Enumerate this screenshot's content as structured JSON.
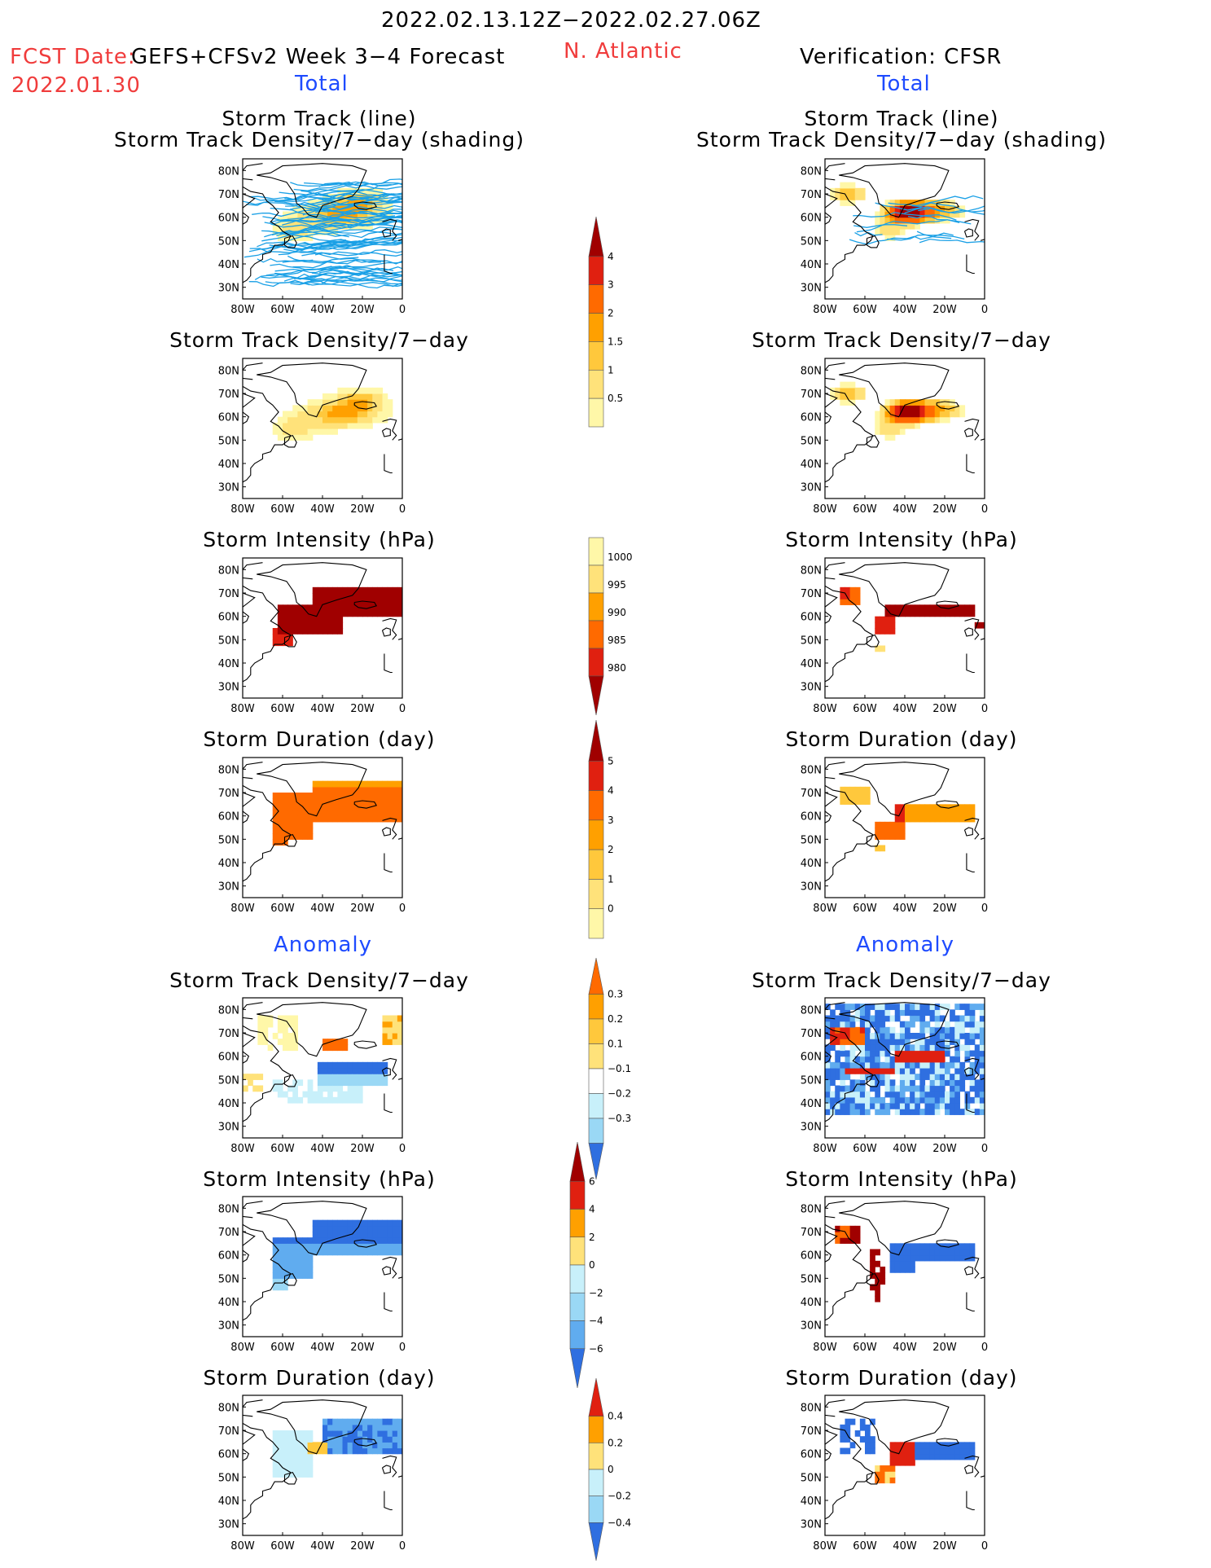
{
  "header": {
    "date_range": "2022.02.13.12Z−2022.02.27.06Z",
    "fcst_label": "FCST Date:",
    "fcst_model": "GEFS+CFSv2 Week 3−4 Forecast",
    "fcst_date": "2022.01.30",
    "region": "N. Atlantic",
    "verification": "Verification: CFSR"
  },
  "sections": {
    "total_left": "Total",
    "total_right": "Total",
    "anomaly_left": "Anomaly",
    "anomaly_right": "Anomaly"
  },
  "panel_titles": {
    "track_line": "Storm Track (line)",
    "track_density_shading": "Storm Track Density/7−day (shading)",
    "track_density": "Storm Track Density/7−day",
    "intensity": "Storm Intensity (hPa)",
    "duration": "Storm Duration (day)"
  },
  "map_axes": {
    "lat_labels": [
      "80N",
      "70N",
      "60N",
      "50N",
      "40N",
      "30N"
    ],
    "lon_labels": [
      "80W",
      "60W",
      "40W",
      "20W",
      "0"
    ]
  },
  "colors": {
    "tracks": "#1aa0e6",
    "pos": [
      "#fff7a8",
      "#ffe27a",
      "#ffc83c",
      "#ffa000",
      "#ff6a00",
      "#e02010",
      "#a00000"
    ],
    "neg": [
      "#c8f0fa",
      "#9ad8f5",
      "#60acef",
      "#2f6fe0"
    ]
  },
  "colorbars": [
    {
      "name": "density-colorbar",
      "labels": [
        "4",
        "3",
        "2",
        "1.5",
        "1",
        "0.5"
      ]
    },
    {
      "name": "intensity-colorbar",
      "labels": [
        "1000",
        "995",
        "990",
        "985",
        "980"
      ]
    },
    {
      "name": "duration-colorbar",
      "labels": [
        "5",
        "4",
        "3",
        "2",
        "1",
        "0"
      ]
    },
    {
      "name": "density-anomaly-colorbar",
      "labels": [
        "0.3",
        "0.2",
        "0.1",
        "−0.1",
        "−0.2",
        "−0.3"
      ]
    },
    {
      "name": "intensity-anomaly-colorbar",
      "labels": [
        "6",
        "4",
        "2",
        "0",
        "−2",
        "−4",
        "−6"
      ]
    },
    {
      "name": "duration-anomaly-colorbar",
      "labels": [
        "0.4",
        "0.2",
        "0",
        "−0.2",
        "−0.4"
      ]
    }
  ]
}
